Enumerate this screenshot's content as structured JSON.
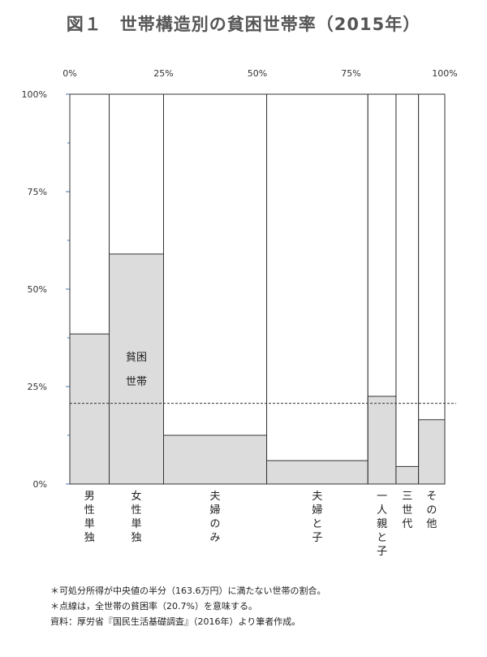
{
  "title": "図１　世帯構造別の貧困世帯率（2015年）",
  "chart_data": {
    "type": "mosaic",
    "top_axis_ticks": [
      "0%",
      "25%",
      "50%",
      "75%",
      "100%"
    ],
    "left_axis_ticks": [
      "100%",
      "75%",
      "50%",
      "25%",
      "0%"
    ],
    "poverty_label": [
      "貧困",
      "世帯"
    ],
    "average_line": 20.7,
    "categories": [
      {
        "label": "男性単独",
        "share": 10.5,
        "poverty_rate": 38.5
      },
      {
        "label": "女性単独",
        "share": 14.5,
        "poverty_rate": 59.0
      },
      {
        "label": "夫婦のみ",
        "share": 27.5,
        "poverty_rate": 12.5
      },
      {
        "label": "夫婦と子",
        "share": 27.0,
        "poverty_rate": 6.0
      },
      {
        "label": "一人親と子",
        "share": 7.5,
        "poverty_rate": 22.5
      },
      {
        "label": "三世代",
        "share": 6.0,
        "poverty_rate": 4.5
      },
      {
        "label": "その他",
        "share": 7.0,
        "poverty_rate": 16.5
      }
    ],
    "colors": {
      "poor": "#dcdcdc",
      "border": "#333333",
      "axis_tick": "#4a7ab0"
    }
  },
  "notes": [
    "＊可処分所得が中央値の半分（163.6万円）に満たない世帯の割合。",
    "＊点線は，全世帯の貧困率（20.7%）を意味する。",
    "資料：厚労省『国民生活基礎調査』（2016年）より筆者作成。"
  ]
}
